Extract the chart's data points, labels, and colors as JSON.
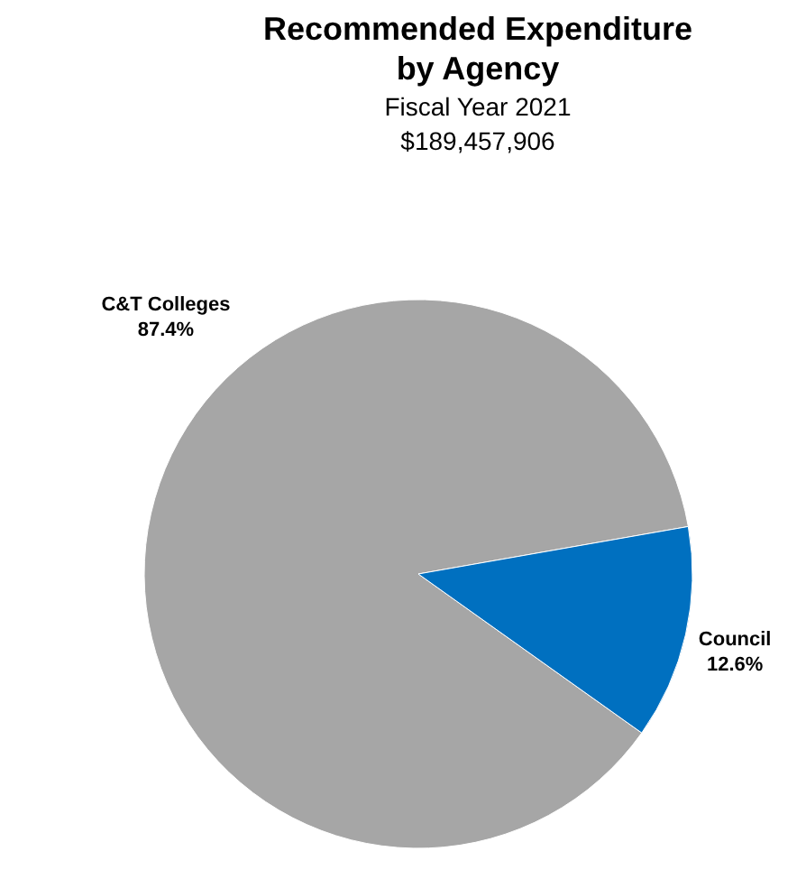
{
  "chart_data": {
    "type": "pie",
    "title": "Recommended Expenditure by Agency",
    "subtitle": "Fiscal Year 2021",
    "annotations": [
      "$189,457,906"
    ],
    "categories": [
      "C&T Colleges",
      "Council"
    ],
    "values": [
      87.4,
      12.6
    ],
    "colors": [
      "#a6a6a6",
      "#0070c0"
    ],
    "value_labels": [
      "87.4%",
      "12.6%"
    ]
  }
}
